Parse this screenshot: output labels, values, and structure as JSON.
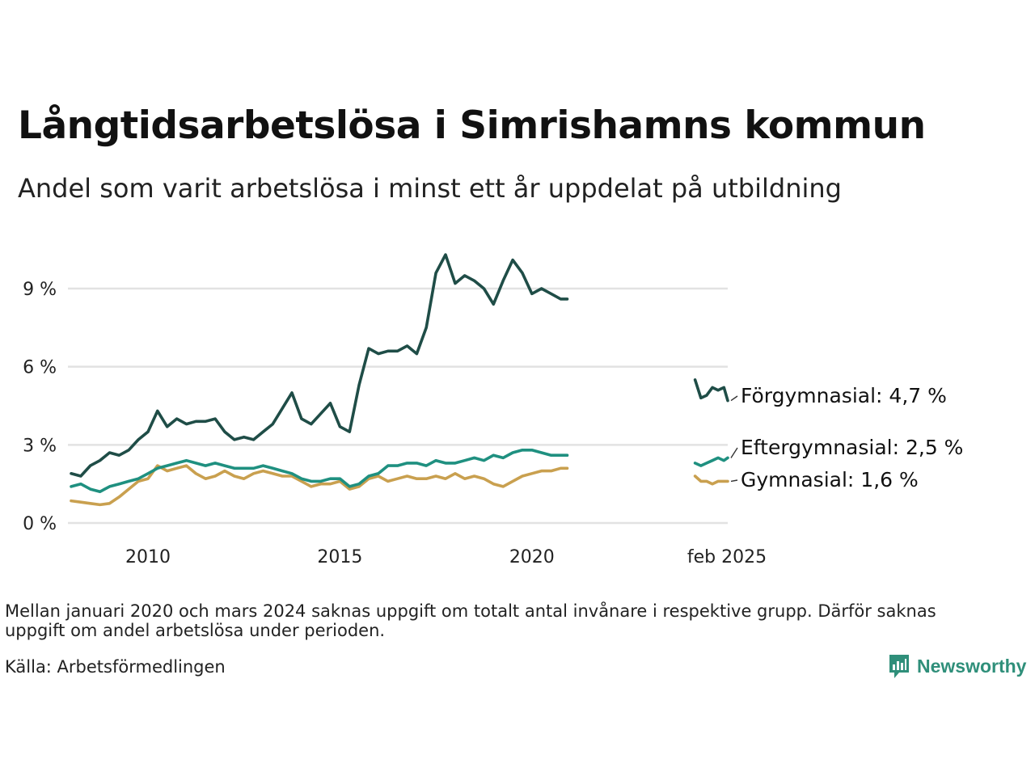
{
  "title": "Långtidsarbetslösa i Simrishamns kommun",
  "subtitle": "Andel som varit arbetslösa i minst ett år uppdelat på utbildning",
  "footnote": "Mellan januari 2020 och mars 2024 saknas uppgift om totalt antal invånare i respektive grupp. Därför saknas uppgift om andel arbetslösa under perioden.",
  "source": "Källa: Arbetsförmedlingen",
  "brand": "Newsworthy",
  "colors": {
    "forgymnasial": "#1f4d47",
    "eftergymnasial": "#1f9080",
    "gymnasial": "#c9a04f",
    "grid": "#e2e2e2",
    "brand": "#2f8f7a"
  },
  "chart_data": {
    "type": "line",
    "y_unit": "%",
    "ylim": [
      0,
      11
    ],
    "y_ticks": [
      0,
      3,
      6,
      9
    ],
    "y_tick_labels": [
      "0 %",
      "3 %",
      "6 %",
      "9 %"
    ],
    "x_ticks": [
      2010,
      2015,
      2020,
      2025.1
    ],
    "x_tick_labels": [
      "2010",
      "2015",
      "2020",
      "feb 2025"
    ],
    "xlim": [
      2008.0,
      2025.1
    ],
    "grid": true,
    "series": [
      {
        "name": "Förgymnasial",
        "end_label": "Förgymnasial: 4,7 %",
        "segments": [
          {
            "x": [
              2008.0,
              2008.25,
              2008.5,
              2008.75,
              2009.0,
              2009.25,
              2009.5,
              2009.75,
              2010.0,
              2010.25,
              2010.5,
              2010.75,
              2011.0,
              2011.25,
              2011.5,
              2011.75,
              2012.0,
              2012.25,
              2012.5,
              2012.75,
              2013.0,
              2013.25,
              2013.5,
              2013.75,
              2014.0,
              2014.25,
              2014.5,
              2014.75,
              2015.0,
              2015.25,
              2015.5,
              2015.75,
              2016.0,
              2016.25,
              2016.5,
              2016.75,
              2017.0,
              2017.25,
              2017.5,
              2017.75,
              2018.0,
              2018.25,
              2018.5,
              2018.75,
              2019.0,
              2019.25,
              2019.5,
              2019.75,
              2020.0,
              2020.25,
              2020.5,
              2020.75,
              2020.92
            ],
            "y": [
              1.9,
              1.8,
              2.2,
              2.4,
              2.7,
              2.6,
              2.8,
              3.2,
              3.5,
              4.3,
              3.7,
              4.0,
              3.8,
              3.9,
              3.9,
              4.0,
              3.5,
              3.2,
              3.3,
              3.2,
              3.5,
              3.8,
              4.4,
              5.0,
              4.0,
              3.8,
              4.2,
              4.6,
              3.7,
              3.5,
              5.3,
              6.7,
              6.5,
              6.6,
              6.6,
              6.8,
              6.5,
              7.5,
              9.6,
              10.3,
              9.2,
              9.5,
              9.3,
              9.0,
              8.4,
              9.3,
              10.1,
              9.6,
              8.8,
              9.0,
              8.8,
              8.6,
              8.6
            ]
          },
          {
            "x": [
              2024.25,
              2024.4,
              2024.55,
              2024.7,
              2024.85,
              2025.0,
              2025.1
            ],
            "y": [
              5.5,
              4.8,
              4.9,
              5.2,
              5.1,
              5.2,
              4.7
            ]
          }
        ]
      },
      {
        "name": "Eftergymnasial",
        "end_label": "Eftergymnasial: 2,5 %",
        "segments": [
          {
            "x": [
              2008.0,
              2008.25,
              2008.5,
              2008.75,
              2009.0,
              2009.25,
              2009.5,
              2009.75,
              2010.0,
              2010.25,
              2010.5,
              2010.75,
              2011.0,
              2011.25,
              2011.5,
              2011.75,
              2012.0,
              2012.25,
              2012.5,
              2012.75,
              2013.0,
              2013.25,
              2013.5,
              2013.75,
              2014.0,
              2014.25,
              2014.5,
              2014.75,
              2015.0,
              2015.25,
              2015.5,
              2015.75,
              2016.0,
              2016.25,
              2016.5,
              2016.75,
              2017.0,
              2017.25,
              2017.5,
              2017.75,
              2018.0,
              2018.25,
              2018.5,
              2018.75,
              2019.0,
              2019.25,
              2019.5,
              2019.75,
              2020.0,
              2020.25,
              2020.5,
              2020.75,
              2020.92
            ],
            "y": [
              1.4,
              1.5,
              1.3,
              1.2,
              1.4,
              1.5,
              1.6,
              1.7,
              1.9,
              2.1,
              2.2,
              2.3,
              2.4,
              2.3,
              2.2,
              2.3,
              2.2,
              2.1,
              2.1,
              2.1,
              2.2,
              2.1,
              2.0,
              1.9,
              1.7,
              1.6,
              1.6,
              1.7,
              1.7,
              1.4,
              1.5,
              1.8,
              1.9,
              2.2,
              2.2,
              2.3,
              2.3,
              2.2,
              2.4,
              2.3,
              2.3,
              2.4,
              2.5,
              2.4,
              2.6,
              2.5,
              2.7,
              2.8,
              2.8,
              2.7,
              2.6,
              2.6,
              2.6
            ]
          },
          {
            "x": [
              2024.25,
              2024.4,
              2024.55,
              2024.7,
              2024.85,
              2025.0,
              2025.1
            ],
            "y": [
              2.3,
              2.2,
              2.3,
              2.4,
              2.5,
              2.4,
              2.5
            ]
          }
        ]
      },
      {
        "name": "Gymnasial",
        "end_label": "Gymnasial: 1,6 %",
        "segments": [
          {
            "x": [
              2008.0,
              2008.25,
              2008.5,
              2008.75,
              2009.0,
              2009.25,
              2009.5,
              2009.75,
              2010.0,
              2010.25,
              2010.5,
              2010.75,
              2011.0,
              2011.25,
              2011.5,
              2011.75,
              2012.0,
              2012.25,
              2012.5,
              2012.75,
              2013.0,
              2013.25,
              2013.5,
              2013.75,
              2014.0,
              2014.25,
              2014.5,
              2014.75,
              2015.0,
              2015.25,
              2015.5,
              2015.75,
              2016.0,
              2016.25,
              2016.5,
              2016.75,
              2017.0,
              2017.25,
              2017.5,
              2017.75,
              2018.0,
              2018.25,
              2018.5,
              2018.75,
              2019.0,
              2019.25,
              2019.5,
              2019.75,
              2020.0,
              2020.25,
              2020.5,
              2020.75,
              2020.92
            ],
            "y": [
              0.85,
              0.8,
              0.75,
              0.7,
              0.75,
              1.0,
              1.3,
              1.6,
              1.7,
              2.2,
              2.0,
              2.1,
              2.2,
              1.9,
              1.7,
              1.8,
              2.0,
              1.8,
              1.7,
              1.9,
              2.0,
              1.9,
              1.8,
              1.8,
              1.6,
              1.4,
              1.5,
              1.5,
              1.6,
              1.3,
              1.4,
              1.7,
              1.8,
              1.6,
              1.7,
              1.8,
              1.7,
              1.7,
              1.8,
              1.7,
              1.9,
              1.7,
              1.8,
              1.7,
              1.5,
              1.4,
              1.6,
              1.8,
              1.9,
              2.0,
              2.0,
              2.1,
              2.1
            ]
          },
          {
            "x": [
              2024.25,
              2024.4,
              2024.55,
              2024.7,
              2024.85,
              2025.0,
              2025.1
            ],
            "y": [
              1.8,
              1.6,
              1.6,
              1.5,
              1.6,
              1.6,
              1.6
            ]
          }
        ]
      }
    ]
  }
}
